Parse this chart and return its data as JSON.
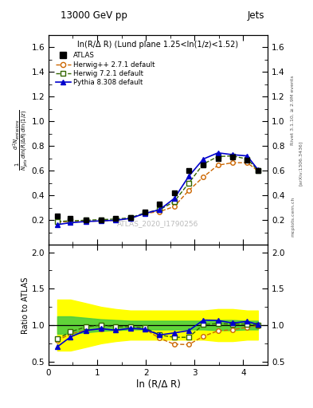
{
  "title_top": "13000 GeV pp",
  "title_right": "Jets",
  "xlabel": "ln (R/Δ R)",
  "ylabel_ratio": "Ratio to ATLAS",
  "annotation": "ln(R/Δ R) (Lund plane 1.25<ln(1/z)<1.52)",
  "watermark": "ATLAS_2020_I1790256",
  "rivet_text": "Rivet 3.1.10, ≥ 2.9M events",
  "arxiv_text": "[arXiv:1306.3436]",
  "mcplots_text": "mcplots.cern.ch",
  "x_atlas": [
    0.18,
    0.45,
    0.77,
    1.08,
    1.38,
    1.68,
    1.98,
    2.28,
    2.58,
    2.88,
    3.18,
    3.48,
    3.78,
    4.08,
    4.3
  ],
  "y_atlas": [
    0.235,
    0.215,
    0.205,
    0.205,
    0.215,
    0.225,
    0.27,
    0.33,
    0.42,
    0.6,
    0.65,
    0.7,
    0.71,
    0.685,
    0.605
  ],
  "x_herwig1": [
    0.18,
    0.45,
    0.77,
    1.08,
    1.38,
    1.68,
    1.98,
    2.28,
    2.58,
    2.88,
    3.18,
    3.48,
    3.78,
    4.08,
    4.3
  ],
  "y_herwig1": [
    0.185,
    0.19,
    0.19,
    0.195,
    0.2,
    0.215,
    0.255,
    0.27,
    0.31,
    0.44,
    0.55,
    0.645,
    0.665,
    0.665,
    0.6
  ],
  "x_herwig2": [
    0.18,
    0.45,
    0.77,
    1.08,
    1.38,
    1.68,
    1.98,
    2.28,
    2.58,
    2.88,
    3.18,
    3.48,
    3.78,
    4.08,
    4.3
  ],
  "y_herwig2": [
    0.19,
    0.195,
    0.2,
    0.205,
    0.21,
    0.22,
    0.26,
    0.285,
    0.35,
    0.5,
    0.655,
    0.715,
    0.72,
    0.695,
    0.605
  ],
  "x_pythia": [
    0.18,
    0.45,
    0.77,
    1.08,
    1.38,
    1.68,
    1.98,
    2.28,
    2.58,
    2.88,
    3.18,
    3.48,
    3.78,
    4.08,
    4.3
  ],
  "y_pythia": [
    0.165,
    0.18,
    0.19,
    0.195,
    0.2,
    0.215,
    0.255,
    0.285,
    0.375,
    0.555,
    0.695,
    0.745,
    0.73,
    0.72,
    0.61
  ],
  "ratio_herwig1": [
    0.787,
    0.88,
    0.93,
    0.95,
    0.93,
    0.956,
    0.944,
    0.82,
    0.738,
    0.733,
    0.846,
    0.921,
    0.937,
    0.971,
    0.992
  ],
  "ratio_herwig2": [
    0.809,
    0.907,
    0.976,
    1.0,
    0.977,
    0.978,
    0.963,
    0.864,
    0.833,
    0.833,
    1.008,
    1.021,
    1.014,
    1.015,
    1.0
  ],
  "ratio_pythia": [
    0.702,
    0.837,
    0.927,
    0.951,
    0.93,
    0.956,
    0.944,
    0.864,
    0.893,
    0.925,
    1.069,
    1.064,
    1.028,
    1.051,
    1.008
  ],
  "band_yellow_lo": [
    0.65,
    0.65,
    0.7,
    0.75,
    0.78,
    0.8,
    0.8,
    0.8,
    0.8,
    0.8,
    0.8,
    0.78,
    0.78,
    0.8,
    0.8
  ],
  "band_yellow_hi": [
    1.35,
    1.35,
    1.3,
    1.25,
    1.22,
    1.2,
    1.2,
    1.2,
    1.2,
    1.2,
    1.2,
    1.22,
    1.22,
    1.2,
    1.2
  ],
  "band_green_lo": [
    0.88,
    0.88,
    0.9,
    0.92,
    0.93,
    0.94,
    0.94,
    0.94,
    0.94,
    0.94,
    0.94,
    0.93,
    0.93,
    0.94,
    0.94
  ],
  "band_green_hi": [
    1.12,
    1.12,
    1.1,
    1.08,
    1.07,
    1.06,
    1.06,
    1.06,
    1.06,
    1.06,
    1.06,
    1.07,
    1.07,
    1.06,
    1.06
  ],
  "color_atlas": "#000000",
  "color_herwig1": "#cc6600",
  "color_herwig2": "#336600",
  "color_pythia": "#0000cc",
  "color_yellow": "#ffff00",
  "color_green": "#44cc44",
  "xlim": [
    0,
    4.5
  ],
  "ylim_main": [
    0.0,
    1.7
  ],
  "ylim_ratio": [
    0.45,
    2.1
  ],
  "yticks_main": [
    0.2,
    0.4,
    0.6,
    0.8,
    1.0,
    1.2,
    1.4,
    1.6
  ],
  "yticks_ratio": [
    0.5,
    1.0,
    1.5,
    2.0
  ],
  "xticks": [
    0,
    1,
    2,
    3,
    4
  ]
}
